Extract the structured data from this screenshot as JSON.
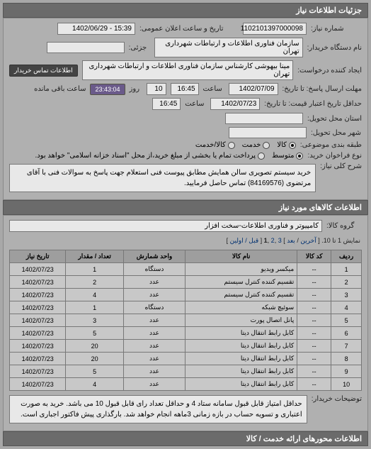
{
  "header": {
    "title": "جزئیات اطلاعات نیاز"
  },
  "meta": {
    "reqnum_label": "شماره نیاز:",
    "reqnum": "1102101397000098",
    "announce_label": "تاریخ و ساعت اعلان عمومی:",
    "announce": "15:39 - 1402/06/29",
    "buyer_label": "نام دستگاه خریدار:",
    "buyer": "سازمان فناوری اطلاعات و ارتباطات شهرداری تهران",
    "sub_label": "جزئی:",
    "sub": "",
    "requester_label": "ایجاد کننده درخواست:",
    "requester": "مینا بیهوشی کارشناس سازمان فناوری اطلاعات و ارتباطات شهرداری تهران",
    "contact_btn": "اطلاعات تماس خریدار",
    "deadline_label": "مهلت ارسال پاسخ: تا تاریخ:",
    "deadline_date": "1402/07/09",
    "time_label": "ساعت",
    "deadline_time": "16:45",
    "days_label": "روز",
    "days": "10",
    "countdown": "23:43:04",
    "countdown_note": "ساعت باقی مانده",
    "validity_label": "حداقل تاریخ اعتبار قیمت: تا تاریخ:",
    "validity_date": "1402/07/23",
    "validity_time": "16:45",
    "province_label": "استان محل تحویل:",
    "province": "",
    "delivery_label": "شهر محل تحویل:",
    "delivery": "",
    "pkg_group_label": "طبقه بندی موضوعی:",
    "pkg_group_a": "کالا",
    "pkg_group_b": "خدمت",
    "pkg_group_c": "کالا/خدمت",
    "call_type_label": "نوع فراخوان خرید:",
    "call_type_a": "متوسط",
    "call_type_b": "",
    "call_note": "پرداخت تمام یا بخشی از مبلغ خرید،از محل \"اسناد خزانه اسلامی\" خواهد بود.",
    "summary_label": "شرح کلی نیاز:",
    "summary": "خرید سیستم تصویری سالن همایش مطابق پیوست فنی استعلام جهت پاسخ به سوالات فنی با آقای مرتضوی (84169576) تماس حاصل فرمایید."
  },
  "goods_header": {
    "title": "اطلاعات کالاهای مورد نیاز"
  },
  "goods": {
    "group_label": "گروه کالا:",
    "group_value": "کامپیوتر و فناوری اطلاعات-سخت افزار"
  },
  "pager": {
    "range": "نمایش 1 تا 10.",
    "last": "آخرین",
    "next_sep": "/",
    "next": "بعد",
    "pages": [
      "3",
      "2",
      "1"
    ],
    "first": "قبل / اولین"
  },
  "table": {
    "columns": [
      "ردیف",
      "کد کالا",
      "نام کالا",
      "واحد شمارش",
      "تعداد / مقدار",
      "تاریخ نیاز"
    ],
    "rows": [
      [
        "1",
        "--",
        "میکسر ویدیو",
        "دستگاه",
        "1",
        "1402/07/23"
      ],
      [
        "2",
        "--",
        "تقسیم کننده کنترل سیستم",
        "عدد",
        "2",
        "1402/07/23"
      ],
      [
        "3",
        "--",
        "تقسیم کننده کنترل سیستم",
        "عدد",
        "4",
        "1402/07/23"
      ],
      [
        "4",
        "--",
        "سوئیچ شبکه",
        "دستگاه",
        "1",
        "1402/07/23"
      ],
      [
        "5",
        "--",
        "پانل اتصال پورت",
        "عدد",
        "3",
        "1402/07/23"
      ],
      [
        "6",
        "--",
        "کابل رابط انتقال دیتا",
        "عدد",
        "5",
        "1402/07/23"
      ],
      [
        "7",
        "--",
        "کابل رابط انتقال دیتا",
        "عدد",
        "20",
        "1402/07/23"
      ],
      [
        "8",
        "--",
        "کابل رابط انتقال دیتا",
        "عدد",
        "20",
        "1402/07/23"
      ],
      [
        "9",
        "--",
        "کابل رابط انتقال دیتا",
        "عدد",
        "5",
        "1402/07/23"
      ],
      [
        "10",
        "--",
        "کابل رابط انتقال دیتا",
        "عدد",
        "4",
        "1402/07/23"
      ]
    ]
  },
  "notes": {
    "label": "توضیحات خریدار:",
    "text": "حداقل امتیاز قابل قبول سامانه ستاد 4 و حداقل تعداد رای قابل قبول 10 می باشد. خرید به صورت اعتباری و تسویه حساب در بازه زمانی 3ماهه انجام خواهد شد. بارگذاری پیش فاکتور اجباری است."
  },
  "footer": {
    "title": "اطلاعات محورهای ارائه خدمت / کالا"
  }
}
